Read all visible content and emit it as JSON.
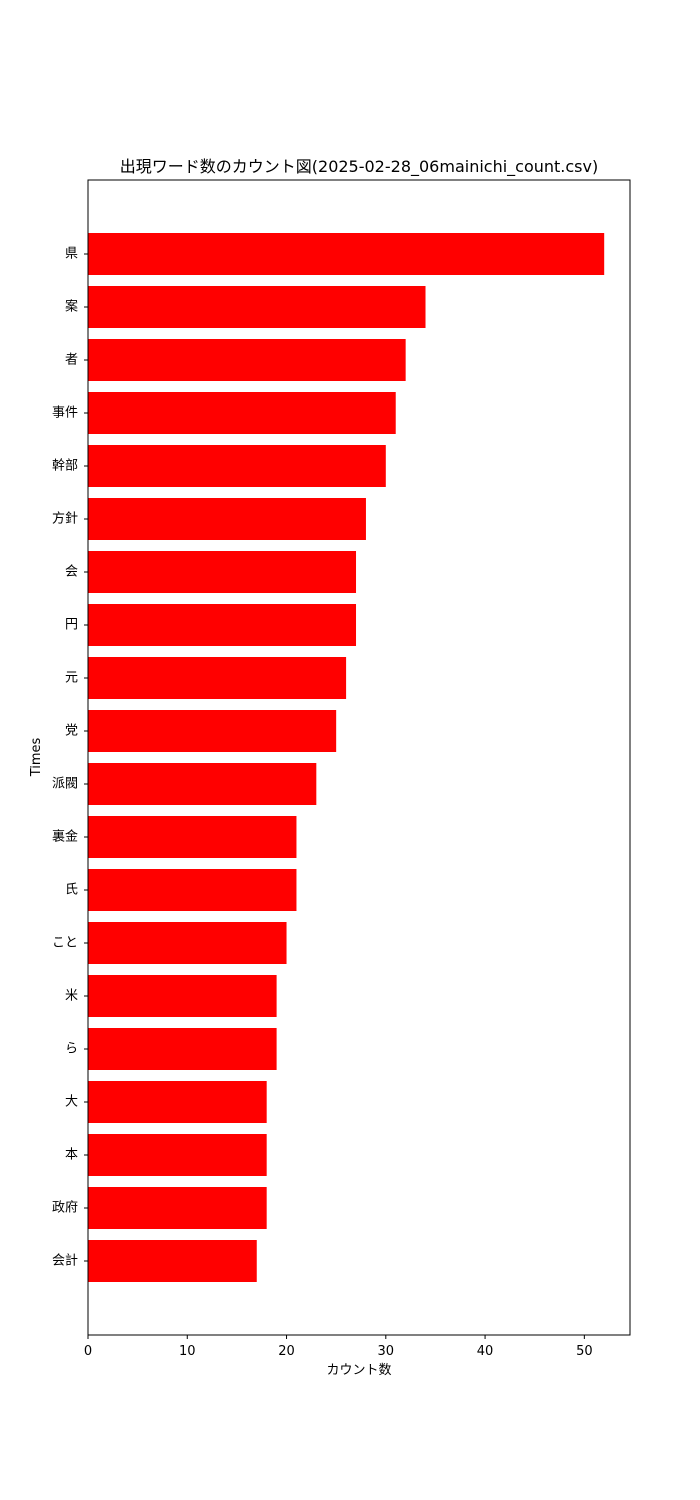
{
  "chart_data": {
    "type": "bar",
    "orientation": "horizontal",
    "title": "出現ワード数のカウント図(2025-02-28_06mainichi_count.csv)",
    "xlabel": "カウント数",
    "ylabel": "Times",
    "categories": [
      "県",
      "案",
      "者",
      "事件",
      "幹部",
      "方針",
      "会",
      "円",
      "元",
      "党",
      "派閥",
      "裏金",
      "氏",
      "こと",
      "米",
      "ら",
      "大",
      "本",
      "政府",
      "会計"
    ],
    "values": [
      52,
      34,
      32,
      31,
      30,
      28,
      27,
      27,
      26,
      25,
      23,
      21,
      21,
      20,
      19,
      19,
      18,
      18,
      18,
      17
    ],
    "xlim": [
      0,
      54.6
    ],
    "xticks": [
      "0",
      "10",
      "20",
      "30",
      "40",
      "50"
    ],
    "bar_color": "#ff0000",
    "grid": false,
    "legend": "none"
  }
}
